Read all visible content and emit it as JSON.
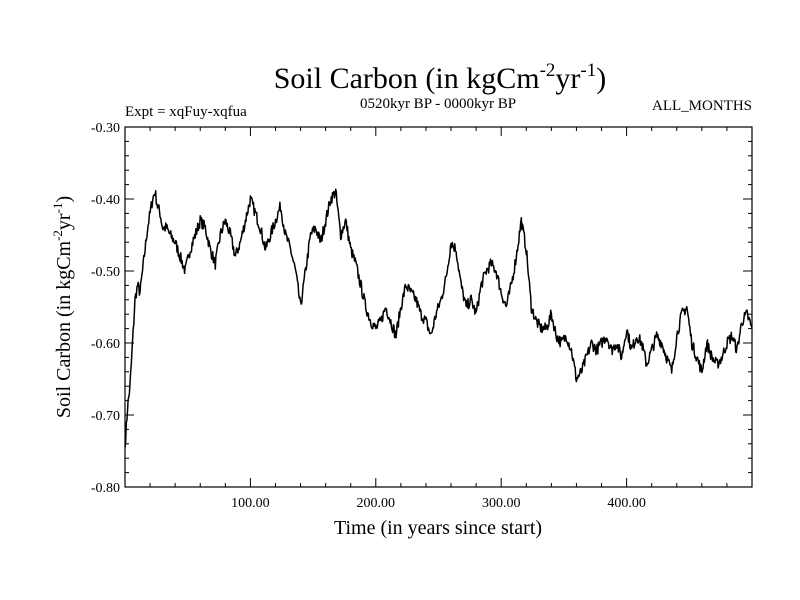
{
  "chart_data": {
    "type": "line",
    "title": "Soil Carbon (in kgCm",
    "title_sup1": "-2",
    "title_mid": "yr",
    "title_sup2": "-1",
    "title_end": ")",
    "subtitle_left": "Expt = xqFuy-xqfua",
    "subtitle_center": "0520kyr BP - 0000kyr BP",
    "subtitle_right": "ALL_MONTHS",
    "xlabel": "Time (in years since start)",
    "ylabel": "Soil Carbon (in kgCm",
    "ylabel_sup1": "-2",
    "ylabel_mid": "yr",
    "ylabel_sup2": "-1",
    "ylabel_end": ")",
    "xlim": [
      0,
      500
    ],
    "ylim": [
      -0.8,
      -0.3
    ],
    "x_ticks": [
      100,
      200,
      300,
      400
    ],
    "x_tick_labels": [
      "100.00",
      "200.00",
      "300.00",
      "400.00"
    ],
    "y_ticks": [
      -0.3,
      -0.4,
      -0.5,
      -0.6,
      -0.7,
      -0.8
    ],
    "y_tick_labels": [
      "-0.30",
      "-0.40",
      "-0.50",
      "-0.60",
      "-0.70",
      "-0.80"
    ],
    "series": [
      {
        "name": "Soil Carbon",
        "x": [
          0,
          2,
          4,
          6,
          8,
          10,
          12,
          14,
          16,
          18,
          20,
          22,
          24,
          26,
          28,
          30,
          33,
          36,
          40,
          44,
          48,
          52,
          56,
          60,
          64,
          68,
          72,
          76,
          80,
          84,
          88,
          92,
          96,
          100,
          104,
          108,
          112,
          116,
          120,
          124,
          128,
          132,
          136,
          140,
          144,
          148,
          152,
          156,
          160,
          164,
          168,
          172,
          176,
          180,
          184,
          188,
          192,
          196,
          200,
          204,
          208,
          212,
          216,
          220,
          224,
          228,
          232,
          236,
          240,
          244,
          248,
          252,
          256,
          260,
          264,
          268,
          272,
          276,
          280,
          284,
          288,
          292,
          296,
          300,
          304,
          308,
          312,
          316,
          320,
          324,
          328,
          332,
          336,
          340,
          344,
          348,
          352,
          356,
          360,
          364,
          368,
          372,
          376,
          380,
          384,
          388,
          392,
          396,
          400,
          404,
          408,
          412,
          416,
          420,
          424,
          428,
          432,
          436,
          440,
          444,
          448,
          452,
          456,
          460,
          464,
          468,
          472,
          476,
          480,
          484,
          488,
          492,
          496,
          500
        ],
        "y": [
          -0.745,
          -0.69,
          -0.66,
          -0.6,
          -0.54,
          -0.52,
          -0.53,
          -0.5,
          -0.47,
          -0.44,
          -0.42,
          -0.4,
          -0.39,
          -0.41,
          -0.42,
          -0.44,
          -0.44,
          -0.45,
          -0.46,
          -0.48,
          -0.5,
          -0.47,
          -0.45,
          -0.43,
          -0.44,
          -0.47,
          -0.49,
          -0.45,
          -0.43,
          -0.45,
          -0.48,
          -0.46,
          -0.43,
          -0.4,
          -0.42,
          -0.44,
          -0.47,
          -0.45,
          -0.43,
          -0.41,
          -0.45,
          -0.47,
          -0.5,
          -0.55,
          -0.5,
          -0.45,
          -0.44,
          -0.46,
          -0.43,
          -0.4,
          -0.39,
          -0.45,
          -0.43,
          -0.47,
          -0.49,
          -0.52,
          -0.55,
          -0.57,
          -0.58,
          -0.57,
          -0.55,
          -0.57,
          -0.59,
          -0.55,
          -0.52,
          -0.53,
          -0.54,
          -0.56,
          -0.57,
          -0.59,
          -0.56,
          -0.54,
          -0.51,
          -0.46,
          -0.47,
          -0.52,
          -0.55,
          -0.54,
          -0.56,
          -0.52,
          -0.5,
          -0.49,
          -0.5,
          -0.53,
          -0.55,
          -0.52,
          -0.48,
          -0.43,
          -0.47,
          -0.55,
          -0.57,
          -0.58,
          -0.58,
          -0.56,
          -0.59,
          -0.6,
          -0.59,
          -0.61,
          -0.65,
          -0.64,
          -0.62,
          -0.6,
          -0.61,
          -0.6,
          -0.59,
          -0.61,
          -0.6,
          -0.62,
          -0.58,
          -0.61,
          -0.59,
          -0.6,
          -0.63,
          -0.61,
          -0.59,
          -0.6,
          -0.62,
          -0.64,
          -0.59,
          -0.56,
          -0.55,
          -0.6,
          -0.62,
          -0.64,
          -0.6,
          -0.62,
          -0.63,
          -0.62,
          -0.6,
          -0.59,
          -0.61,
          -0.57,
          -0.56,
          -0.58
        ],
        "noise_amplitude": 0.008
      }
    ]
  }
}
